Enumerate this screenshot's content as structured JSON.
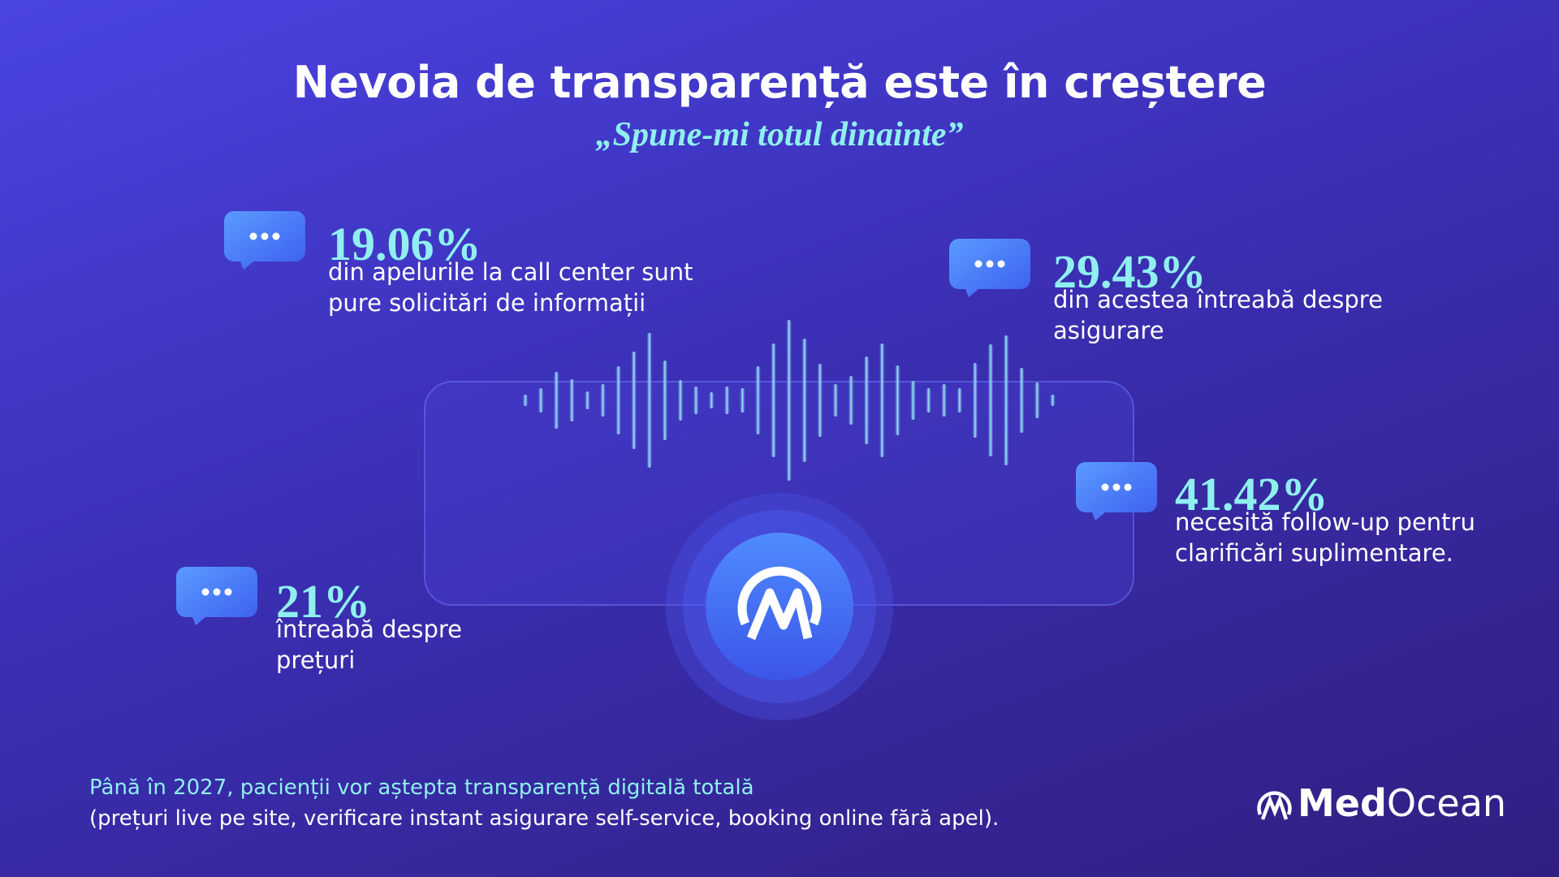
{
  "header": {
    "title": "Nevoia de transparență este în creștere",
    "subtitle": "„Spune-mi totul dinainte”"
  },
  "stats": [
    {
      "value": "19.06%",
      "lines": [
        "din apelurile la call center sunt",
        "pure solicitări de informații"
      ]
    },
    {
      "value": "29.43%",
      "lines": [
        "din acestea întreabă despre",
        "asigurare"
      ]
    },
    {
      "value": "41.42%",
      "lines": [
        "necesită follow-up pentru",
        "clarificări suplimentare."
      ]
    },
    {
      "value": "21%",
      "lines": [
        "întreabă despre",
        "prețuri"
      ]
    }
  ],
  "footer": {
    "highlight": "Până în 2027, pacienții vor aștepta transparență digitală totală",
    "detail": "(prețuri live pe site, verificare instant asigurare self-service, booking online fără apel)."
  },
  "brand": {
    "bold": "Med",
    "regular": "Ocean"
  }
}
